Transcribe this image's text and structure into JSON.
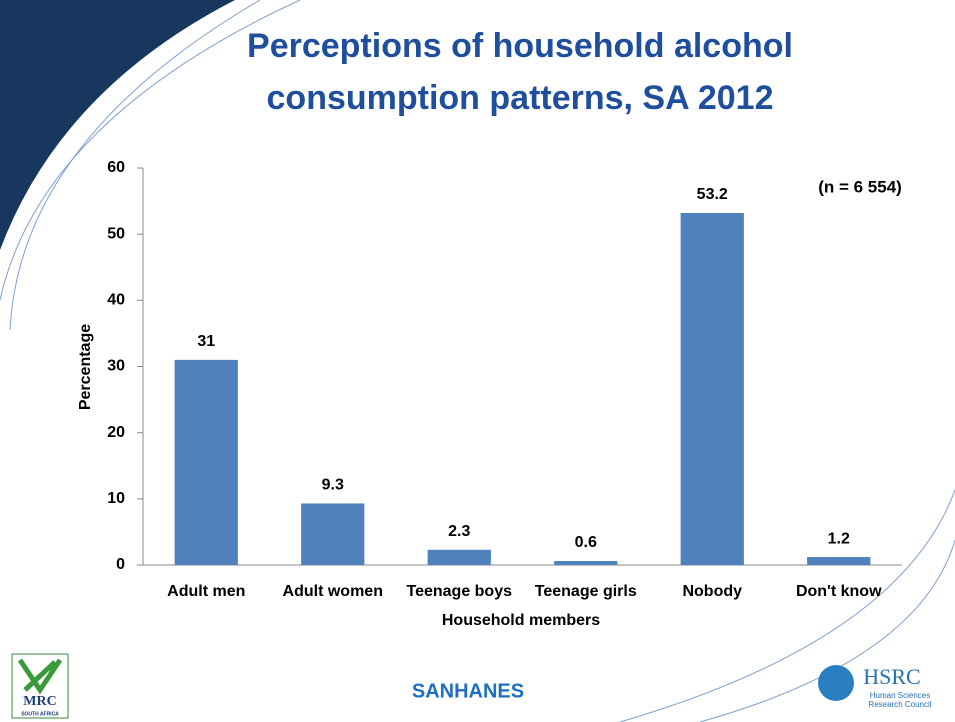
{
  "chart_data": {
    "type": "bar",
    "title_lines": [
      "Perceptions of household alcohol",
      "consumption patterns, SA 2012"
    ],
    "annotation": "(n = 6 554)",
    "xlabel": "Household members",
    "ylabel": "Percentage",
    "categories": [
      "Adult men",
      "Adult women",
      "Teenage boys",
      "Teenage girls",
      "Nobody",
      "Don't know"
    ],
    "values": [
      31,
      9.3,
      2.3,
      0.6,
      53.2,
      1.2
    ],
    "color": "#4f81bd",
    "ylim": [
      0,
      60
    ],
    "yticks": [
      0,
      10,
      20,
      30,
      40,
      50,
      60
    ],
    "grid": false
  },
  "footer": "SANHANES",
  "logos": {
    "left": {
      "name": "MRC",
      "sub": "SOUTH AFRICA"
    },
    "right": {
      "name": "HSRC",
      "line1": "Human Sciences",
      "line2": "Research Council"
    }
  }
}
